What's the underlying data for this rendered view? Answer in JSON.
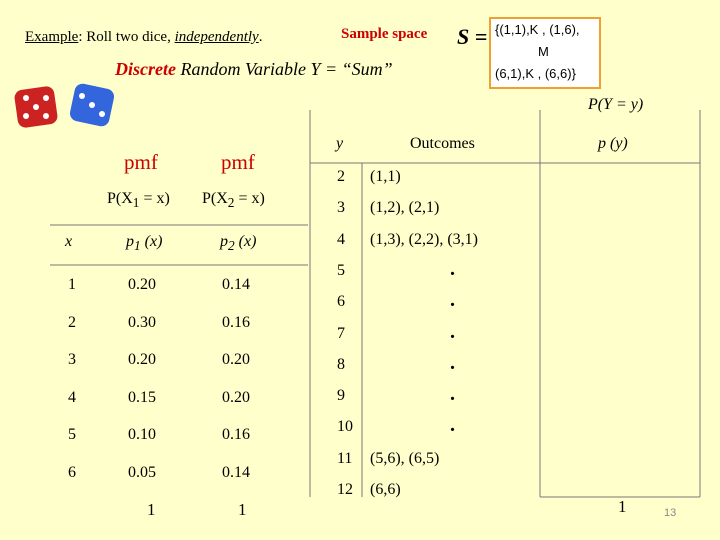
{
  "header": {
    "example_label": "Example",
    "example_text": ": Roll two dice, ",
    "independently": "independently",
    "period": ".",
    "sample_space_label": "Sample space",
    "s_equals": "S =",
    "set_line1": "{(1,1),K , (1,6),",
    "set_line2": "M",
    "set_line3": "(6,1),K , (6,6)}",
    "discrete": "Discrete",
    "rv_text": "Random Variable  Y = “Sum”",
    "py_label": "P(Y = y)"
  },
  "left": {
    "pmf1": "pmf",
    "pmf2": "pmf",
    "px1": {
      "prefix": "P(X",
      "sub": "1",
      "suffix": " = x)"
    },
    "px2": {
      "prefix": "P(X",
      "sub": "2",
      "suffix": " = x)"
    },
    "table": {
      "header": [
        "x",
        {
          "prefix": "p",
          "sub": "1",
          "suffix": " (x)"
        },
        {
          "prefix": "p",
          "sub": "2",
          "suffix": " (x)"
        }
      ],
      "rows": [
        [
          "1",
          "0.20",
          "0.14"
        ],
        [
          "2",
          "0.30",
          "0.16"
        ],
        [
          "3",
          "0.20",
          "0.20"
        ],
        [
          "4",
          "0.15",
          "0.20"
        ],
        [
          "5",
          "0.10",
          "0.16"
        ],
        [
          "6",
          "0.05",
          "0.14"
        ]
      ],
      "totals": [
        "1",
        "1"
      ]
    }
  },
  "right": {
    "table": {
      "header": [
        "y",
        "Outcomes",
        "p (y)"
      ],
      "rows": [
        [
          "2",
          "(1,1)"
        ],
        [
          "3",
          "(1,2), (2,1)"
        ],
        [
          "4",
          "(1,3), (2,2), (3,1)"
        ],
        [
          "5",
          "."
        ],
        [
          "6",
          "."
        ],
        [
          "7",
          "."
        ],
        [
          "8",
          "."
        ],
        [
          "9",
          "."
        ],
        [
          "10",
          "."
        ],
        [
          "11",
          "(5,6), (6,5)"
        ],
        [
          "12",
          "(6,6)"
        ]
      ],
      "total": "1"
    }
  },
  "footer": {
    "page_number": "13"
  }
}
